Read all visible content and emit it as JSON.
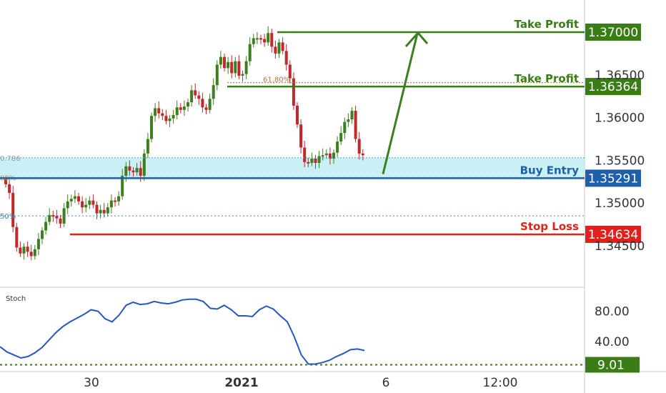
{
  "chart_data": {
    "type": "candlestick",
    "price_axis": {
      "ylim": [
        1.3415,
        1.3745
      ],
      "ticks": [
        1.345,
        1.35,
        1.355,
        1.36,
        1.365
      ],
      "tick_labels": [
        "1.34500",
        "1.35000",
        "1.35500",
        "1.36000",
        "1.36500"
      ]
    },
    "time_axis": {
      "tick_labels": [
        "30",
        "2021",
        "6",
        "12:00"
      ]
    },
    "levels": {
      "take_profit_1": {
        "label": "Take Profit",
        "price": 1.37,
        "price_label": "1.37000",
        "color": "#3a7d16"
      },
      "take_profit_2": {
        "label": "Take Profit",
        "price": 1.36364,
        "price_label": "1.36364",
        "color": "#3a7d16"
      },
      "buy_entry": {
        "label": "Buy Entry",
        "price": 1.35291,
        "price_label": "1.35291",
        "color": "#1f5faa"
      },
      "stop_loss": {
        "label": "Stop Loss",
        "price": 1.34634,
        "price_label": "1.34634",
        "color": "#e0201b"
      }
    },
    "fibonacci": {
      "fib_618": {
        "label": "61.80%",
        "price": 1.3641
      },
      "fib_786_label": "0.786",
      "fib_786_price": 1.3553,
      "fib_382_label": "80%",
      "fib_382_price": 1.353,
      "fib_50_label": "50%",
      "fib_50_price": 1.3485
    },
    "closes": [
      1.3522,
      1.3512,
      1.3472,
      1.3448,
      1.3441,
      1.3449,
      1.3443,
      1.3438,
      1.3446,
      1.3458,
      1.3468,
      1.3478,
      1.3486,
      1.3485,
      1.3482,
      1.3476,
      1.3494,
      1.3502,
      1.3505,
      1.3508,
      1.3502,
      1.3495,
      1.3498,
      1.3503,
      1.3498,
      1.3488,
      1.3492,
      1.3488,
      1.3495,
      1.3503,
      1.3502,
      1.3508,
      1.3532,
      1.3543,
      1.3538,
      1.3536,
      1.3541,
      1.3532,
      1.3558,
      1.3575,
      1.3602,
      1.3611,
      1.3605,
      1.3602,
      1.3596,
      1.3599,
      1.3603,
      1.3612,
      1.3609,
      1.3613,
      1.3618,
      1.3632,
      1.3626,
      1.3622,
      1.3612,
      1.3609,
      1.3622,
      1.3638,
      1.3662,
      1.3671,
      1.3658,
      1.3665,
      1.3652,
      1.3666,
      1.3649,
      1.3651,
      1.3666,
      1.3686,
      1.3693,
      1.3693,
      1.3692,
      1.3688,
      1.3699,
      1.3683,
      1.3675,
      1.3688,
      1.3678,
      1.3662,
      1.3646,
      1.3614,
      1.3592,
      1.3565,
      1.3548,
      1.3547,
      1.3552,
      1.3547,
      1.3555,
      1.3556,
      1.3558,
      1.3552,
      1.3559,
      1.3572,
      1.3582,
      1.3595,
      1.3598,
      1.3608,
      1.3575,
      1.3558,
      1.3556
    ],
    "stoch": {
      "title": "Stoch",
      "ylim": [
        0,
        110
      ],
      "tick_labels": [
        "80.00",
        "40.00"
      ],
      "ticks": [
        80,
        40
      ],
      "current": 9.01,
      "current_label": "9.01",
      "values": [
        33,
        26,
        22,
        18,
        20,
        25,
        32,
        42,
        52,
        60,
        66,
        71,
        76,
        82,
        80,
        70,
        66,
        75,
        88,
        92,
        89,
        90,
        93,
        91,
        90,
        92,
        95,
        96,
        96,
        93,
        84,
        83,
        88,
        82,
        74,
        74,
        73,
        82,
        87,
        83,
        74,
        66,
        46,
        22,
        10,
        10,
        12,
        15,
        20,
        24,
        29,
        30,
        28
      ]
    },
    "arrow": {
      "from_price": 1.3534,
      "to_price": 1.37
    }
  }
}
